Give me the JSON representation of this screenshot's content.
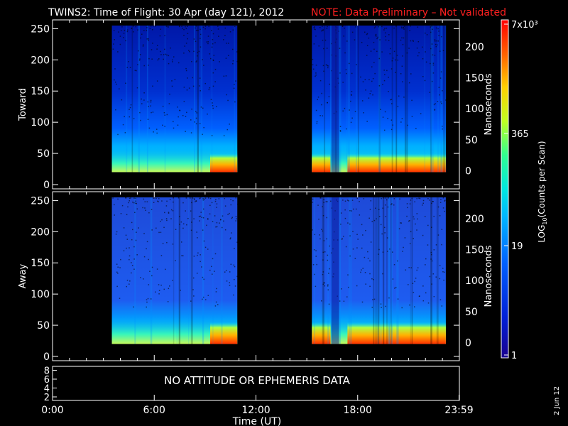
{
  "header": {
    "title": "TWINS2: Time of Flight: 30 Apr (day 121), 2012",
    "note": "NOTE: Data Preliminary – Not validated",
    "note_color": "#ff2020"
  },
  "side_date": "2 Jun 12",
  "colorbar": {
    "label": "LOG10(Counts per Scan)",
    "label_base": "LOG",
    "label_sub": "10",
    "label_rest": "(Counts per Scan)",
    "ticks": [
      "7x10³",
      "365",
      "19",
      "1"
    ],
    "tick_values": [
      7000,
      365,
      19,
      1
    ]
  },
  "chart_data": [
    {
      "type": "heatmap",
      "panel": "Toward",
      "ylabel": "Toward",
      "ylabel_right": "Nanoseconds",
      "ylim": [
        0,
        255
      ],
      "y_ticks": [
        "0",
        "50",
        "100",
        "150",
        "200",
        "250"
      ],
      "y2_ticks": [
        "0",
        "50",
        "100",
        "150",
        "200"
      ],
      "data_intervals_ut": [
        [
          3.5,
          10.9
        ],
        [
          15.3,
          23.2
        ]
      ],
      "peak_band_channel": [
        20,
        50
      ],
      "colorscale": "log",
      "zlim": [
        1,
        7000
      ]
    },
    {
      "type": "heatmap",
      "panel": "Away",
      "ylabel": "Away",
      "ylabel_right": "Nanoseconds",
      "ylim": [
        0,
        255
      ],
      "y_ticks": [
        "0",
        "50",
        "100",
        "150",
        "200",
        "250"
      ],
      "y2_ticks": [
        "0",
        "50",
        "100",
        "150",
        "200"
      ],
      "data_intervals_ut": [
        [
          3.5,
          10.9
        ],
        [
          15.3,
          23.2
        ]
      ],
      "peak_band_channel": [
        20,
        55
      ],
      "colorscale": "log",
      "zlim": [
        1,
        7000
      ]
    },
    {
      "type": "line",
      "panel": "Attitude",
      "y_ticks": [
        "2",
        "4",
        "6",
        "8"
      ],
      "message": "NO ATTITUDE OR EPHEMERIS DATA"
    }
  ],
  "x_axis": {
    "label": "Time (UT)",
    "ticks": [
      "0:00",
      "6:00",
      "12:00",
      "18:00",
      "23:59"
    ],
    "tick_hours": [
      0,
      6,
      12,
      18,
      23.98
    ]
  }
}
